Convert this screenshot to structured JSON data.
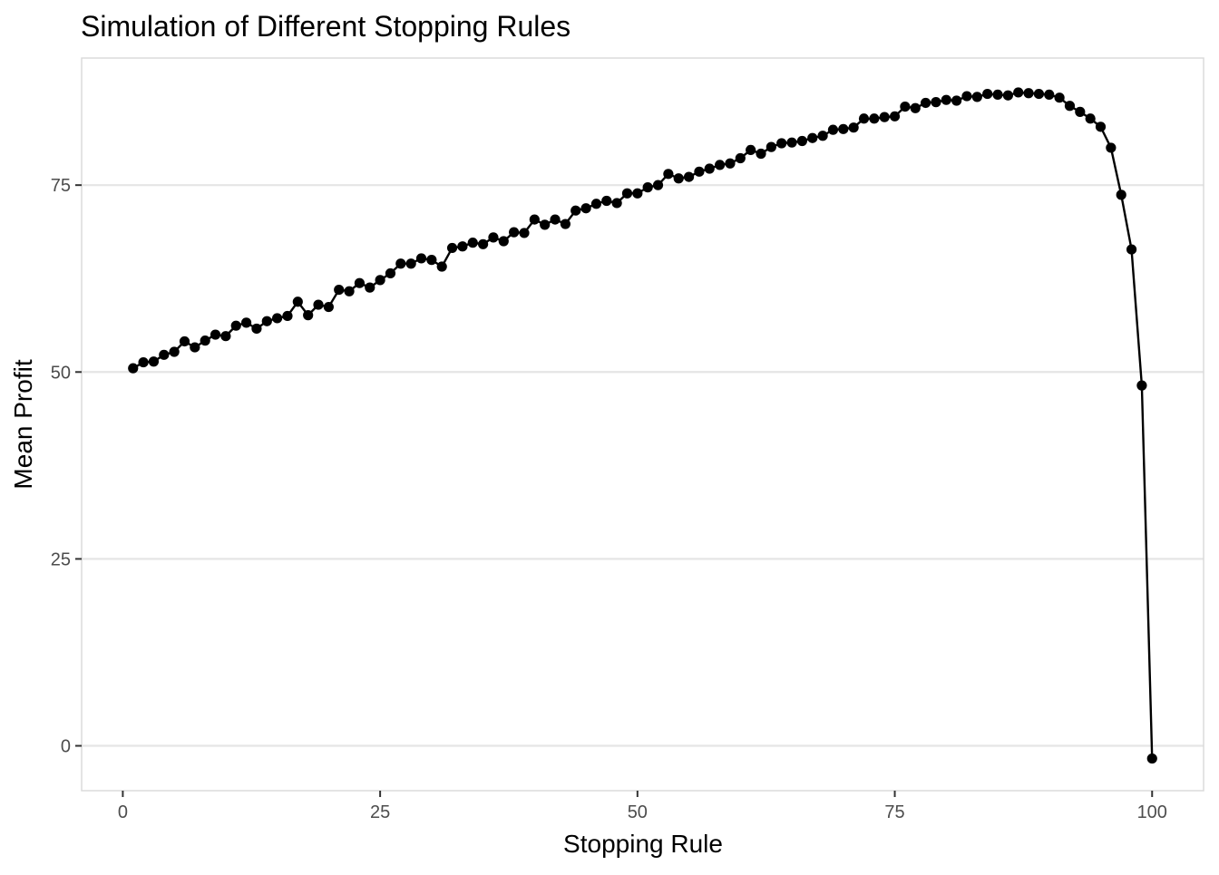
{
  "chart_data": {
    "type": "line",
    "title": "Simulation of Different Stopping Rules",
    "xlabel": "Stopping Rule",
    "ylabel": "Mean Profit",
    "xlim": [
      -4,
      105
    ],
    "ylim": [
      -6,
      92
    ],
    "x_ticks": [
      0,
      25,
      50,
      75,
      100
    ],
    "y_ticks": [
      0,
      25,
      50,
      75
    ],
    "x_tick_labels": [
      "0",
      "25",
      "50",
      "75",
      "100"
    ],
    "y_tick_labels": [
      "0",
      "25",
      "50",
      "75"
    ],
    "grid": true,
    "markers": true,
    "series": [
      {
        "x": [
          1,
          2,
          3,
          4,
          5,
          6,
          7,
          8,
          9,
          10,
          11,
          12,
          13,
          14,
          15,
          16,
          17,
          18,
          19,
          20,
          21,
          22,
          23,
          24,
          25,
          26,
          27,
          28,
          29,
          30,
          31,
          32,
          33,
          34,
          35,
          36,
          37,
          38,
          39,
          40,
          41,
          42,
          43,
          44,
          45,
          46,
          47,
          48,
          49,
          50,
          51,
          52,
          53,
          54,
          55,
          56,
          57,
          58,
          59,
          60,
          61,
          62,
          63,
          64,
          65,
          66,
          67,
          68,
          69,
          70,
          71,
          72,
          73,
          74,
          75,
          76,
          77,
          78,
          79,
          80,
          81,
          82,
          83,
          84,
          85,
          86,
          87,
          88,
          89,
          90,
          91,
          92,
          93,
          94,
          95,
          96,
          97,
          98,
          99,
          100
        ],
        "values": [
          50.5,
          51.3,
          51.4,
          52.3,
          52.7,
          54.1,
          53.3,
          54.2,
          55.0,
          54.8,
          56.2,
          56.6,
          55.8,
          56.8,
          57.2,
          57.5,
          59.4,
          57.6,
          59.0,
          58.7,
          61.0,
          60.8,
          61.9,
          61.3,
          62.3,
          63.2,
          64.5,
          64.5,
          65.2,
          65.0,
          64.1,
          66.6,
          66.8,
          67.3,
          67.1,
          68.0,
          67.5,
          68.7,
          68.6,
          70.4,
          69.7,
          70.4,
          69.8,
          71.6,
          71.9,
          72.5,
          72.9,
          72.6,
          73.9,
          73.9,
          74.7,
          75.0,
          76.5,
          75.9,
          76.1,
          76.8,
          77.2,
          77.7,
          77.9,
          78.6,
          79.7,
          79.2,
          80.1,
          80.6,
          80.7,
          80.9,
          81.3,
          81.6,
          82.4,
          82.5,
          82.7,
          83.9,
          83.9,
          84.1,
          84.2,
          85.5,
          85.3,
          86.0,
          86.1,
          86.4,
          86.3,
          86.9,
          86.8,
          87.2,
          87.1,
          87.0,
          87.4,
          87.3,
          87.2,
          87.1,
          86.7,
          85.6,
          84.8,
          83.9,
          82.8,
          80.0,
          73.7,
          66.4,
          48.2,
          -1.7
        ]
      }
    ]
  }
}
